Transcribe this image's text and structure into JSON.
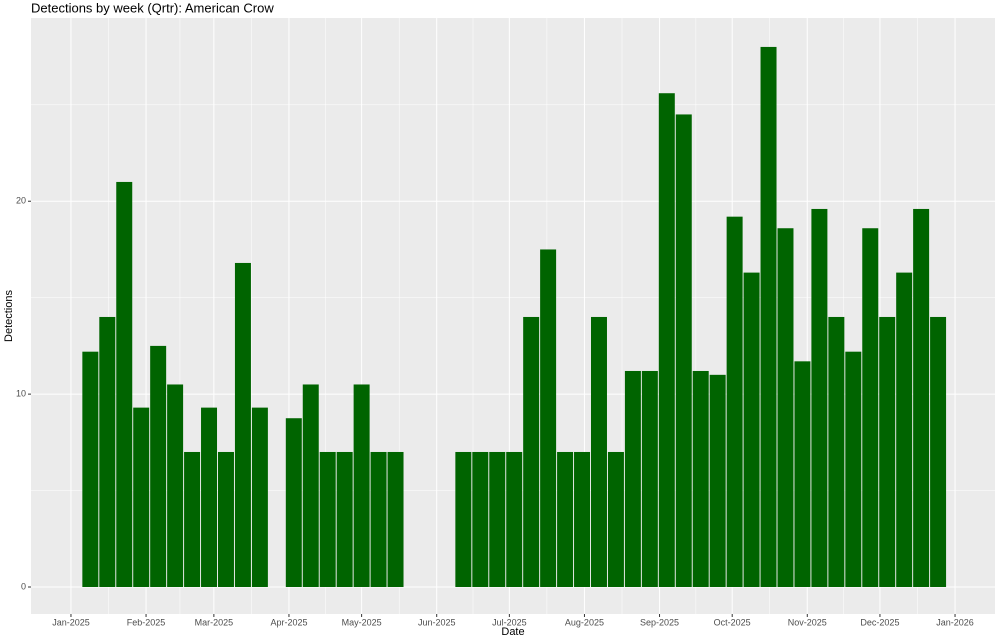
{
  "chart_data": {
    "type": "bar",
    "title": "Detections by week (Qrtr): American Crow",
    "x_label": "Date",
    "y_label": "Detections",
    "color": "#006400",
    "grid": true,
    "x": [
      8,
      15,
      22,
      29,
      36,
      43,
      50,
      57,
      64,
      71,
      78,
      92,
      99,
      106,
      113,
      120,
      127,
      134,
      162,
      169,
      176,
      183,
      190,
      197,
      204,
      211,
      218,
      225,
      232,
      239,
      246,
      253,
      260,
      267,
      274,
      281,
      288,
      295,
      302,
      309,
      316,
      323,
      330,
      337,
      344,
      351,
      358
    ],
    "values": [
      12.2,
      14,
      21,
      9.3,
      12.5,
      10.5,
      7,
      9.3,
      7,
      16.8,
      9.3,
      8.75,
      10.5,
      7,
      7,
      10.5,
      7,
      7,
      7,
      7,
      7,
      7,
      14,
      17.5,
      7,
      7,
      14,
      7,
      11.2,
      11.2,
      25.6,
      24.5,
      11.2,
      11,
      19.2,
      16.3,
      28,
      18.6,
      11.7,
      19.6,
      14,
      12.2,
      18.6,
      14,
      16.3,
      19.6,
      14
    ],
    "bar_width": 6.6,
    "xlim": [
      -16.5,
      381.5
    ],
    "xticks": [
      {
        "value": 0,
        "label": "Jan-2025"
      },
      {
        "value": 31,
        "label": "Feb-2025"
      },
      {
        "value": 59,
        "label": "Mar-2025"
      },
      {
        "value": 90,
        "label": "Apr-2025"
      },
      {
        "value": 120,
        "label": "May-2025"
      },
      {
        "value": 151,
        "label": "Jun-2025"
      },
      {
        "value": 181,
        "label": "Jul-2025"
      },
      {
        "value": 212,
        "label": "Aug-2025"
      },
      {
        "value": 243,
        "label": "Sep-2025"
      },
      {
        "value": 273,
        "label": "Oct-2025"
      },
      {
        "value": 304,
        "label": "Nov-2025"
      },
      {
        "value": 334,
        "label": "Dec-2025"
      },
      {
        "value": 365,
        "label": "Jan-2026"
      }
    ],
    "ylim": [
      -1.4,
      29.5
    ],
    "yticks": [
      0,
      10,
      20
    ]
  }
}
